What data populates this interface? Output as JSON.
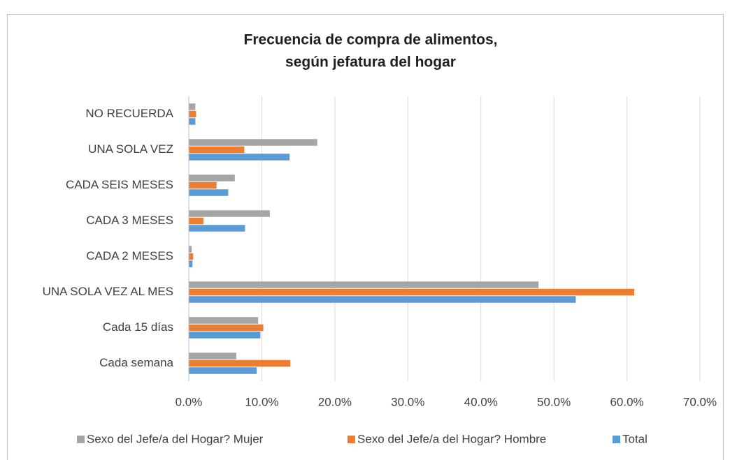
{
  "chart_data": {
    "type": "barh",
    "title": [
      "Frecuencia de compra de alimentos,",
      "según jefatura del hogar"
    ],
    "categories": [
      "NO RECUERDA",
      "UNA SOLA VEZ",
      "CADA SEIS MESES",
      "CADA 3 MESES",
      "CADA 2 MESES",
      "UNA SOLA VEZ AL MES",
      "Cada 15 días",
      "Cada semana"
    ],
    "series": [
      {
        "name": "Sexo del Jefe/a del Hogar? Mujer",
        "color": "#a5a5a5",
        "values": [
          0.9,
          17.6,
          6.3,
          11.1,
          0.4,
          47.9,
          9.5,
          6.5
        ]
      },
      {
        "name": "Sexo del Jefe/a del Hogar? Hombre",
        "color": "#ed7d31",
        "values": [
          1.0,
          7.6,
          3.8,
          2.0,
          0.6,
          61.0,
          10.2,
          13.9
        ]
      },
      {
        "name": "Total",
        "color": "#5b9bd5",
        "values": [
          0.9,
          13.8,
          5.4,
          7.7,
          0.5,
          53.0,
          9.8,
          9.3
        ]
      }
    ],
    "xlim": [
      0,
      70
    ],
    "xticks": [
      {
        "value": 0,
        "label": "0.0%"
      },
      {
        "value": 10,
        "label": "10.0%"
      },
      {
        "value": 20,
        "label": "20.0%"
      },
      {
        "value": 30,
        "label": "30.0%"
      },
      {
        "value": 40,
        "label": "40.0%"
      },
      {
        "value": 50,
        "label": "50.0%"
      },
      {
        "value": 60,
        "label": "60.0%"
      },
      {
        "value": 70,
        "label": "70.0%"
      }
    ],
    "grid": true,
    "legend": "bottom"
  }
}
